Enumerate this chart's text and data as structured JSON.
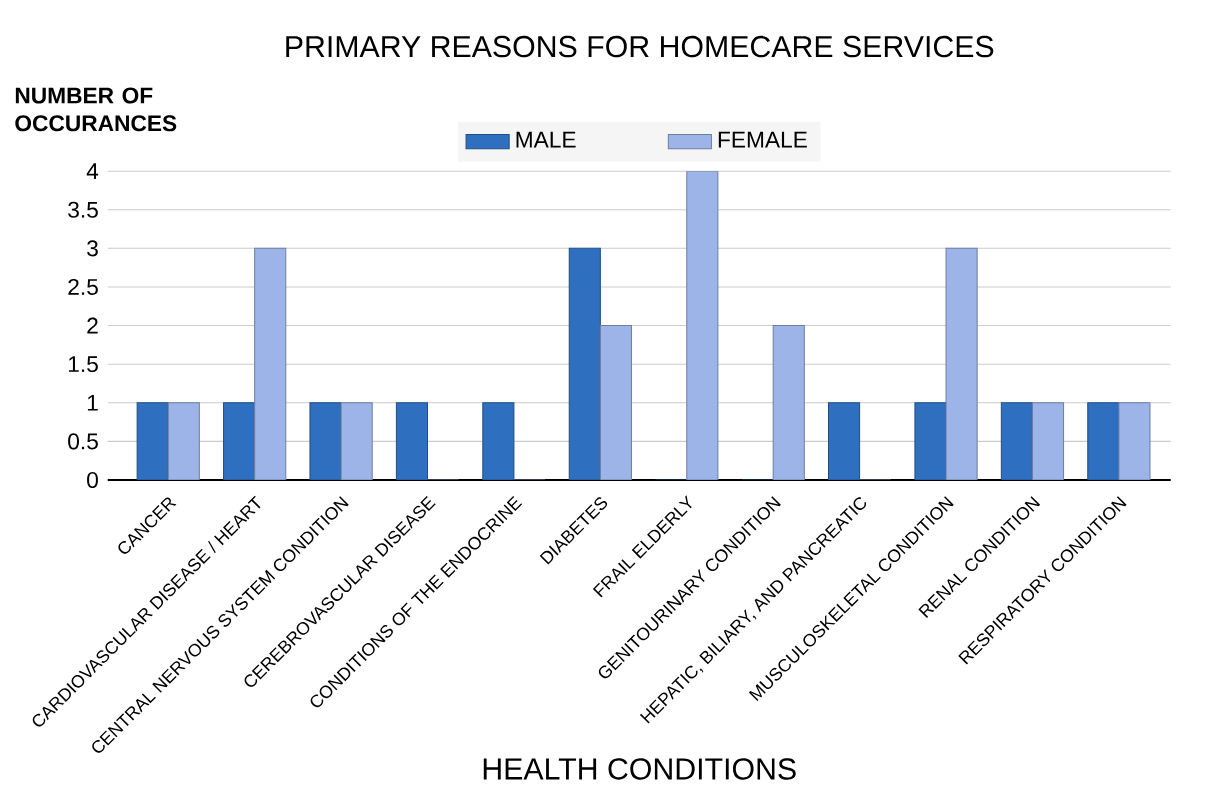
{
  "chart_data": {
    "type": "bar",
    "title": "PRIMARY REASONS FOR HOMECARE SERVICES",
    "xlabel": "HEALTH CONDITIONS",
    "ylabel": "NUMBER OF OCCURANCES",
    "categories": [
      "CANCER",
      "CARDIOVASCULAR DISEASE / HEART",
      "CENTRAL NERVOUS SYSTEM CONDITION",
      "CEREBROVASCULAR DISEASE",
      "CONDITIONS OF THE ENDOCRINE",
      "DIABETES",
      "FRAIL ELDERLY",
      "GENITOURINARY CONDITION",
      "HEPATIC, BILIARY, AND PANCREATIC",
      "MUSCULOSKELETAL CONDITION",
      "RENAL CONDITION",
      "RESPIRATORY CONDITION"
    ],
    "series": [
      {
        "name": "MALE",
        "color": "#2e6fc0",
        "values": [
          1,
          1,
          1,
          1,
          1,
          3,
          0,
          0,
          1,
          1,
          1,
          1
        ]
      },
      {
        "name": "FEMALE",
        "color": "#9cb4e8",
        "values": [
          1,
          3,
          1,
          0,
          0,
          2,
          4,
          2,
          0,
          3,
          1,
          1
        ]
      }
    ],
    "ylim": [
      0,
      4
    ],
    "yticks": [
      0,
      0.5,
      1,
      1.5,
      2,
      2.5,
      3,
      3.5,
      4
    ],
    "grid": "y",
    "legend": "top"
  }
}
